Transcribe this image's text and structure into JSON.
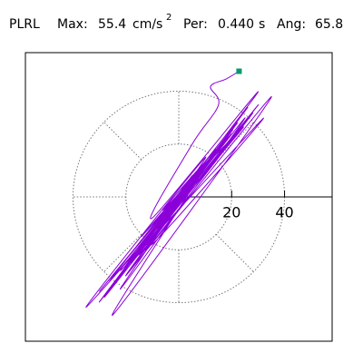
{
  "chart_data": {
    "type": "line",
    "station": "PLRL",
    "max_label": "Max:",
    "max_value": 55.4,
    "max_unit": "cm/s",
    "max_unit_exp": "2",
    "per_label": "Per:",
    "per_value": "0.440",
    "per_unit": "s",
    "ang_label": "Ang:",
    "ang_value": 65.8,
    "xlim": [
      -58,
      58
    ],
    "ylim": [
      -55,
      55
    ],
    "xticks": [
      20,
      40
    ],
    "grid": true,
    "series": [
      {
        "color": "#8b00d9",
        "end_color": "#009970",
        "x": [
          0,
          5,
          -8,
          12,
          -15,
          10,
          -20,
          18,
          -10,
          25,
          -22,
          8,
          -30,
          20,
          -5,
          30,
          -18,
          14,
          -25,
          35,
          -12,
          6,
          -28,
          22,
          -8,
          16,
          -20,
          28,
          -15,
          10,
          -35,
          24,
          -6,
          18,
          -22,
          32,
          -10,
          4,
          -26,
          20,
          -14,
          12,
          -8,
          26,
          -18,
          15,
          -30,
          8,
          -12,
          22,
          -4,
          10,
          -20,
          30,
          -10,
          5,
          15,
          12,
          18,
          22.8
        ],
        "y": [
          0,
          8,
          -10,
          15,
          -20,
          12,
          -30,
          22,
          -15,
          30,
          -35,
          10,
          -40,
          25,
          -8,
          35,
          -25,
          18,
          -45,
          38,
          -20,
          5,
          -38,
          28,
          -12,
          20,
          -30,
          32,
          -22,
          15,
          -42,
          26,
          -5,
          22,
          -28,
          30,
          -18,
          6,
          -32,
          24,
          -15,
          14,
          -10,
          34,
          -25,
          18,
          -36,
          10,
          -18,
          28,
          -6,
          12,
          -26,
          40,
          -8,
          20,
          35,
          42,
          45,
          47.9
        ]
      }
    ]
  }
}
